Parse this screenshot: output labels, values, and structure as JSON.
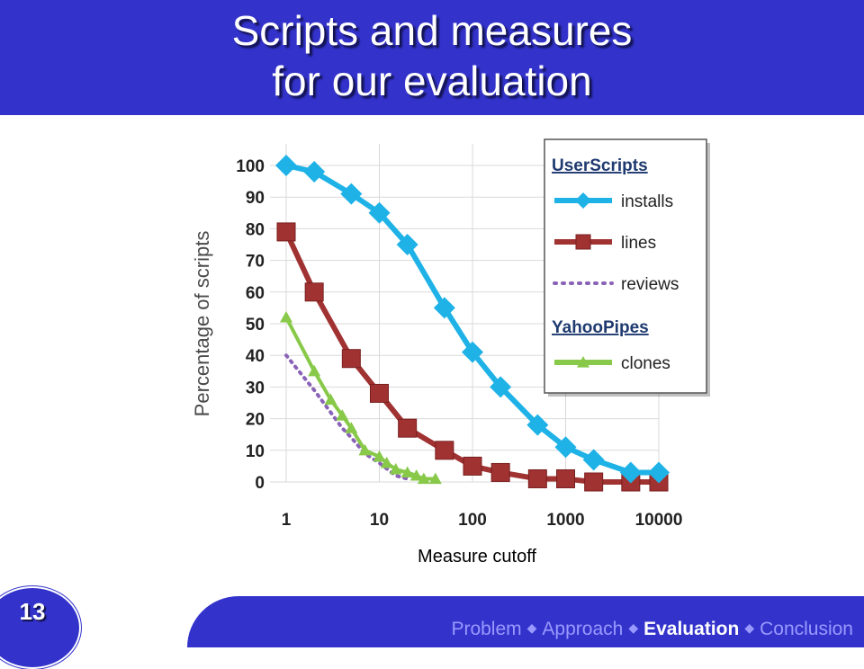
{
  "slide": {
    "title_line1": "Scripts and measures",
    "title_line2": "for our evaluation",
    "number": "13",
    "x_axis_caption": "Measure cutoff",
    "nav": {
      "items": [
        "Problem",
        "Approach",
        "Evaluation",
        "Conclusion"
      ],
      "separator": "◆",
      "active": "Evaluation"
    },
    "colors": {
      "bar": "#3333cc",
      "nav_inactive": "#9999ff",
      "nav_active": "#ffffff"
    }
  },
  "chart_data": {
    "type": "line",
    "x_scale": "log",
    "xlim": [
      1,
      10000
    ],
    "ylim": [
      0,
      100
    ],
    "ylabel": "Percentage of scripts",
    "x_ticks": [
      "1",
      "10",
      "100",
      "1000",
      "10000"
    ],
    "y_ticks": [
      "0",
      "10",
      "20",
      "30",
      "40",
      "50",
      "60",
      "70",
      "80",
      "90",
      "100"
    ],
    "grid": true,
    "legend": {
      "placement": "top-right",
      "groups": [
        {
          "heading": "UserScripts",
          "series": [
            "installs",
            "lines",
            "reviews"
          ]
        },
        {
          "heading": "YahooPipes",
          "series": [
            "clones"
          ]
        }
      ]
    },
    "series": [
      {
        "name": "installs",
        "group": "UserScripts",
        "color": "#1fb2e6",
        "marker": "diamond",
        "style": "solid",
        "x": [
          1,
          2,
          5,
          10,
          20,
          50,
          100,
          200,
          500,
          1000,
          2000,
          5000,
          10000
        ],
        "y": [
          100,
          98,
          91,
          85,
          75,
          55,
          41,
          30,
          18,
          11,
          7,
          3,
          3
        ]
      },
      {
        "name": "lines",
        "group": "UserScripts",
        "color": "#a03232",
        "marker": "square",
        "style": "solid",
        "x": [
          1,
          2,
          5,
          10,
          20,
          50,
          100,
          200,
          500,
          1000,
          2000,
          5000,
          10000
        ],
        "y": [
          79,
          60,
          39,
          28,
          17,
          10,
          5,
          3,
          1,
          1,
          0,
          0,
          0
        ]
      },
      {
        "name": "reviews",
        "group": "UserScripts",
        "color": "#8a63b8",
        "marker": "none",
        "style": "dotted",
        "x": [
          1,
          2,
          3,
          4,
          5,
          7,
          10,
          15,
          20
        ],
        "y": [
          40,
          29,
          22,
          17,
          14,
          9,
          6,
          2,
          1
        ]
      },
      {
        "name": "clones",
        "group": "YahooPipes",
        "color": "#88c94a",
        "marker": "triangle",
        "style": "solid",
        "x": [
          1,
          2,
          3,
          4,
          5,
          7,
          10,
          12,
          15,
          20,
          25,
          30,
          40
        ],
        "y": [
          52,
          35,
          26,
          21,
          17,
          10,
          8,
          6,
          4,
          3,
          2,
          1,
          1
        ]
      }
    ]
  }
}
